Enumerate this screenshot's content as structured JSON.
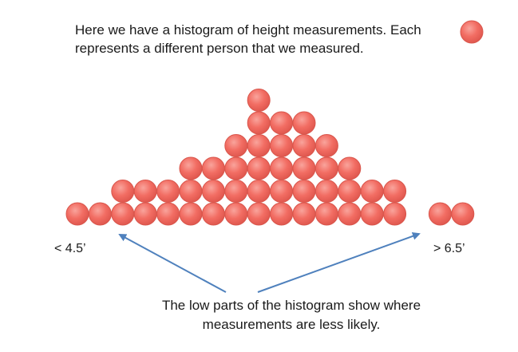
{
  "intro": {
    "line1": "Here we have a histogram of height measurements. Each",
    "line2": "represents a different person that we measured."
  },
  "axis": {
    "left_label": "< 4.5’",
    "right_label": "> 6.5’"
  },
  "note": {
    "line1": "The low parts of the histogram show where",
    "line2": "measurements are less likely."
  },
  "colors": {
    "dot_fill": "#f26d63",
    "dot_stroke": "#d9564c",
    "arrow": "#4f81bd"
  },
  "chart_data": {
    "type": "dot-histogram",
    "x_range_labels": [
      "< 4.5’",
      "> 6.5’"
    ],
    "column_counts": [
      1,
      1,
      2,
      2,
      2,
      3,
      3,
      4,
      6,
      5,
      5,
      4,
      3,
      2,
      2,
      0,
      1,
      1
    ]
  }
}
